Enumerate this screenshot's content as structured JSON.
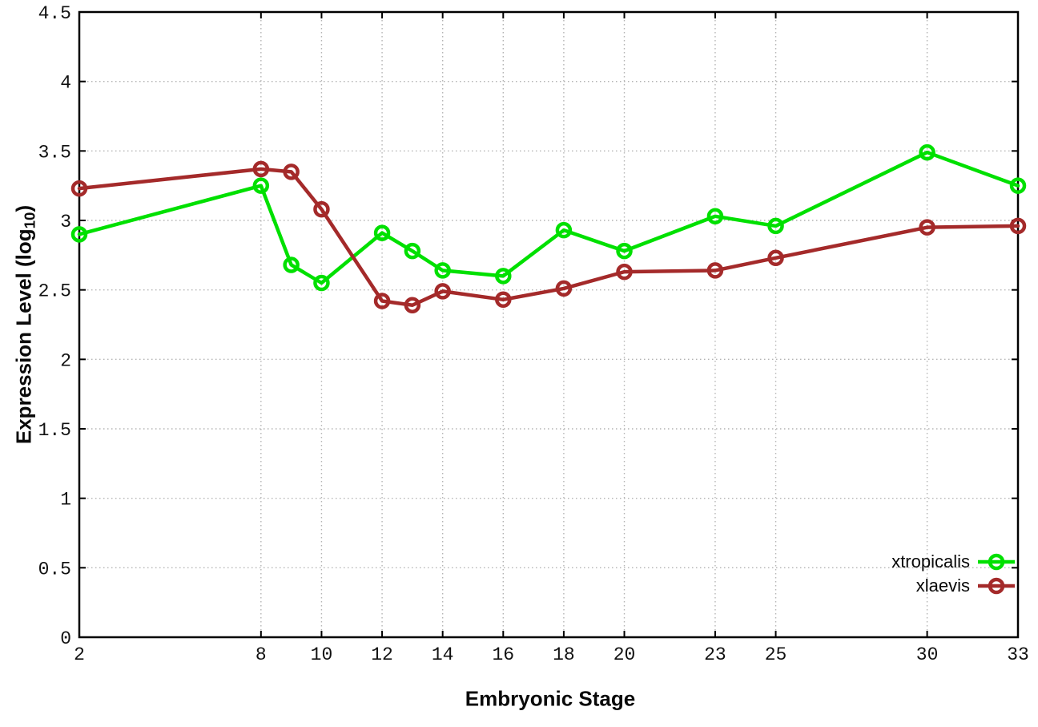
{
  "figure": {
    "background": "#ffffff",
    "axis_color": "#000000",
    "grid_color": "#b4b4b4",
    "tick_label_color": "#111111"
  },
  "chart_data": {
    "type": "line",
    "title": "",
    "xlabel": "Embryonic Stage",
    "ylabel": "Expression Level (log10)",
    "ylabel_main": "Expression Level (log",
    "ylabel_sub": "10",
    "ylabel_end": ")",
    "x": [
      2,
      8,
      9,
      10,
      12,
      13,
      14,
      16,
      18,
      20,
      23,
      25,
      30,
      33
    ],
    "xticks": [
      2,
      8,
      10,
      12,
      14,
      16,
      18,
      20,
      23,
      25,
      30,
      33
    ],
    "yticks": [
      0,
      0.5,
      1,
      1.5,
      2,
      2.5,
      3,
      3.5,
      4,
      4.5
    ],
    "xlim": [
      2,
      33
    ],
    "ylim": [
      0,
      4.5
    ],
    "grid": true,
    "legend_position": "bottom-right",
    "marker": "open-circle",
    "series": [
      {
        "name": "xtropicalis",
        "color": "#00e000",
        "values": [
          2.9,
          3.25,
          2.68,
          2.55,
          2.91,
          2.78,
          2.64,
          2.6,
          2.93,
          2.78,
          3.03,
          2.96,
          3.49,
          3.25
        ]
      },
      {
        "name": "xlaevis",
        "color": "#a42a2a",
        "values": [
          3.23,
          3.37,
          3.35,
          3.08,
          2.42,
          2.39,
          2.49,
          2.43,
          2.51,
          2.63,
          2.64,
          2.73,
          2.95,
          2.96
        ]
      }
    ]
  }
}
